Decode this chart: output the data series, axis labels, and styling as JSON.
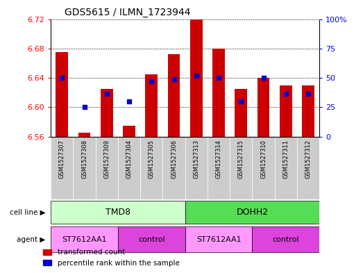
{
  "title": "GDS5615 / ILMN_1723944",
  "samples": [
    "GSM1527307",
    "GSM1527308",
    "GSM1527309",
    "GSM1527304",
    "GSM1527305",
    "GSM1527306",
    "GSM1527313",
    "GSM1527314",
    "GSM1527315",
    "GSM1527310",
    "GSM1527311",
    "GSM1527312"
  ],
  "red_values": [
    6.675,
    6.565,
    6.625,
    6.575,
    6.645,
    6.672,
    6.72,
    6.68,
    6.625,
    6.64,
    6.63,
    6.63
  ],
  "blue_values": [
    6.64,
    6.6,
    6.618,
    6.608,
    6.635,
    6.638,
    6.643,
    6.64,
    6.608,
    6.64,
    6.618,
    6.618
  ],
  "ymin": 6.56,
  "ymax": 6.72,
  "yticks": [
    6.56,
    6.6,
    6.64,
    6.68,
    6.72
  ],
  "right_yticks": [
    0,
    25,
    50,
    75,
    100
  ],
  "right_ytick_labels": [
    "0",
    "25",
    "50",
    "75",
    "100%"
  ],
  "bar_color": "#cc0000",
  "dot_color": "#0000cc",
  "cell_line_tmd8_color": "#ccffcc",
  "cell_line_dohh2_color": "#55dd55",
  "agent_st_color": "#ff99ff",
  "agent_ctrl_color": "#dd44dd",
  "sample_box_color": "#cccccc",
  "cell_line_label": "cell line",
  "agent_label": "agent",
  "cell_lines": [
    {
      "label": "TMD8",
      "start": 0,
      "end": 6
    },
    {
      "label": "DOHH2",
      "start": 6,
      "end": 12
    }
  ],
  "agents": [
    {
      "label": "ST7612AA1",
      "start": 0,
      "end": 3
    },
    {
      "label": "control",
      "start": 3,
      "end": 6
    },
    {
      "label": "ST7612AA1",
      "start": 6,
      "end": 9
    },
    {
      "label": "control",
      "start": 9,
      "end": 12
    }
  ],
  "legend_red": "transformed count",
  "legend_blue": "percentile rank within the sample",
  "bar_width": 0.55
}
